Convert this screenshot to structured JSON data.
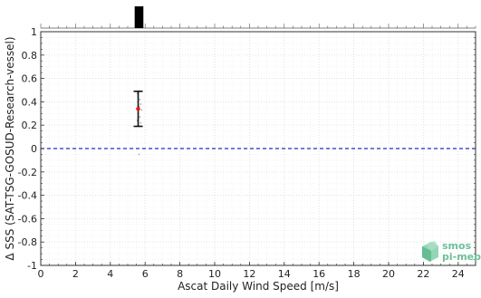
{
  "chart_data": {
    "type": "scatter",
    "xlabel": "Ascat Daily Wind Speed [m/s]",
    "ylabel": "Δ SSS (SAT-TSG-GOSUD-Research-vessel)",
    "xlim": [
      0,
      25
    ],
    "ylim": [
      -1,
      1
    ],
    "xticks": [
      0,
      2,
      4,
      6,
      8,
      10,
      12,
      14,
      16,
      18,
      20,
      22,
      24
    ],
    "yticks": [
      -1,
      -0.8,
      -0.6,
      -0.4,
      -0.2,
      0,
      0.2,
      0.4,
      0.6,
      0.8,
      1
    ],
    "ytick_labels": [
      "-1",
      "-0.8",
      "-0.6",
      "-0.4",
      "-0.2",
      "0",
      "0.2",
      "0.4",
      "0.6",
      "0.8",
      "1"
    ],
    "grid": true,
    "reference_line": {
      "y": 0,
      "style": "dashed",
      "color": "#1f2fbf"
    },
    "histogram": {
      "bins": [
        {
          "x0": 5.4,
          "x1": 5.9
        }
      ],
      "color": "#000000"
    },
    "mean_point": {
      "x": 5.6,
      "y": 0.34,
      "ymin": 0.19,
      "ymax": 0.49,
      "color": "#e0201b"
    },
    "scatter_points": [
      {
        "x": 5.55,
        "y": 0.47
      },
      {
        "x": 5.6,
        "y": 0.44
      },
      {
        "x": 5.7,
        "y": 0.42
      },
      {
        "x": 5.75,
        "y": 0.38
      },
      {
        "x": 5.65,
        "y": 0.36
      },
      {
        "x": 5.8,
        "y": 0.33
      },
      {
        "x": 5.6,
        "y": 0.3
      },
      {
        "x": 5.7,
        "y": 0.27
      },
      {
        "x": 5.55,
        "y": 0.24
      },
      {
        "x": 5.75,
        "y": 0.22
      },
      {
        "x": 5.65,
        "y": -0.05
      }
    ]
  },
  "logo": {
    "line1": "smos",
    "line2": "pi-mep"
  }
}
